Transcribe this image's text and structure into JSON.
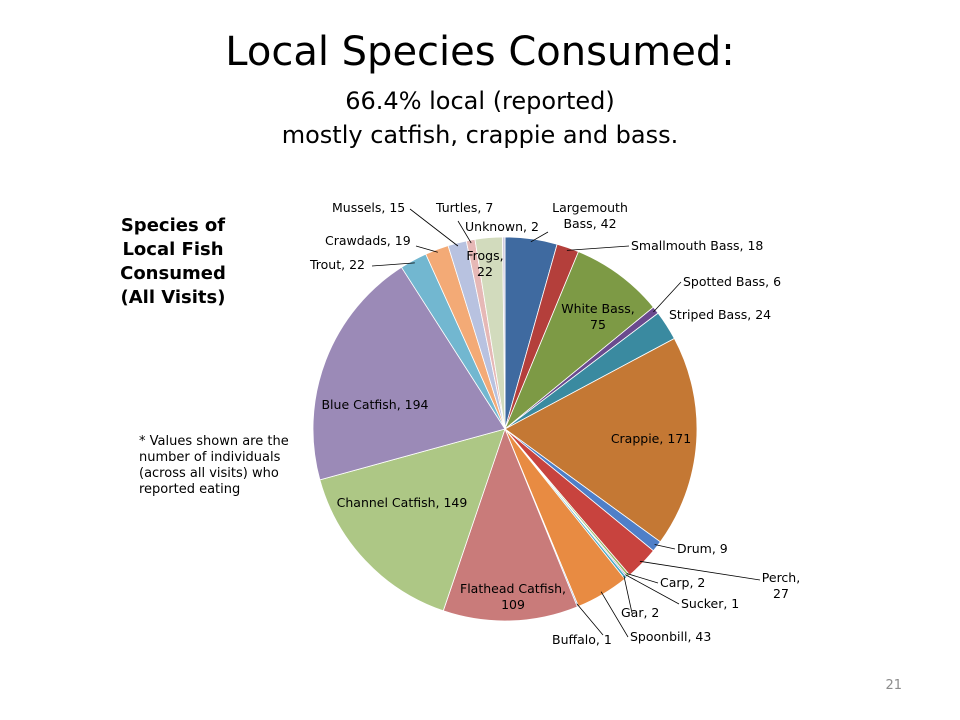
{
  "slide": {
    "title": "Local Species Consumed:",
    "subtitle_line1": "66.4% local (reported)",
    "subtitle_line2": "mostly catfish, crappie and bass.",
    "footnote": "* Values shown are the number of individuals (across all visits) who reported eating",
    "page_number": "21"
  },
  "chart_data": {
    "type": "pie",
    "title": "Species of Local Fish Consumed (All Visits)",
    "start": "12 o'clock",
    "direction": "clockwise",
    "slices": [
      {
        "label": "Largemouth Bass",
        "value": 42,
        "color": "#3f6aa0"
      },
      {
        "label": "Smallmouth Bass",
        "value": 18,
        "color": "#b43f3b"
      },
      {
        "label": "White Bass",
        "value": 75,
        "color": "#7d9a45"
      },
      {
        "label": "Spotted Bass",
        "value": 6,
        "color": "#6a4a8e"
      },
      {
        "label": "Striped Bass",
        "value": 24,
        "color": "#3a8aa0"
      },
      {
        "label": "Crappie",
        "value": 171,
        "color": "#c47834"
      },
      {
        "label": "Drum",
        "value": 9,
        "color": "#4f7fc8"
      },
      {
        "label": "Perch",
        "value": 27,
        "color": "#c8433e"
      },
      {
        "label": "Carp",
        "value": 2,
        "color": "#98b864"
      },
      {
        "label": "Sucker",
        "value": 1,
        "color": "#7e66a6"
      },
      {
        "label": "Gar",
        "value": 2,
        "color": "#46a9c6"
      },
      {
        "label": "Spoonbill",
        "value": 43,
        "color": "#e88b42"
      },
      {
        "label": "Buffalo",
        "value": 1,
        "color": "#8aa6d8"
      },
      {
        "label": "Flathead Catfish",
        "value": 109,
        "color": "#c97b7a"
      },
      {
        "label": "Channel Catfish",
        "value": 149,
        "color": "#adc785"
      },
      {
        "label": "Blue Catfish",
        "value": 194,
        "color": "#9b8ab7"
      },
      {
        "label": "Trout",
        "value": 22,
        "color": "#72b7d0"
      },
      {
        "label": "Crawdads",
        "value": 19,
        "color": "#f3aa76"
      },
      {
        "label": "Mussels",
        "value": 15,
        "color": "#b8c2e0"
      },
      {
        "label": "Turtles",
        "value": 7,
        "color": "#e6b8b6"
      },
      {
        "label": "Frogs",
        "value": 22,
        "color": "#d2dbbd"
      },
      {
        "label": "Unknown",
        "value": 2,
        "color": "#d0cbe0"
      }
    ]
  }
}
